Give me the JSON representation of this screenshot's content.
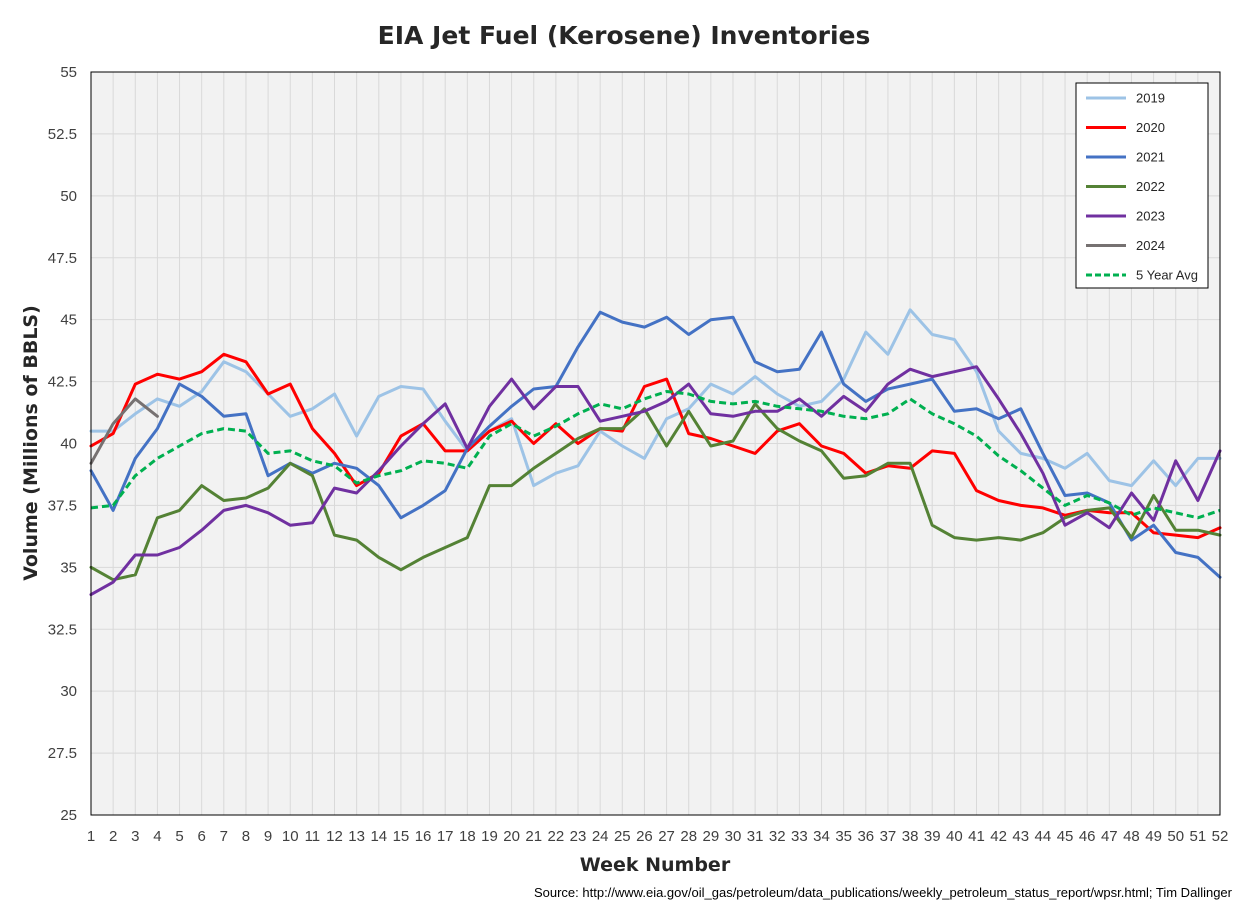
{
  "chart_data": {
    "type": "line",
    "title": "EIA Jet Fuel (Kerosene) Inventories",
    "xlabel": "Week Number",
    "ylabel": "Volume (Millions of BBLS)",
    "source": "Source: http://www.eia.gov/oil_gas/petroleum/data_publications/weekly_petroleum_status_report/wpsr.html; Tim Dallinger",
    "ylim": [
      25,
      55
    ],
    "xlim": [
      1,
      52
    ],
    "y_ticks": [
      "25",
      "27.5",
      "30",
      "32.5",
      "35",
      "37.5",
      "40",
      "42.5",
      "45",
      "47.5",
      "50",
      "52.5",
      "55"
    ],
    "x": [
      1,
      2,
      3,
      4,
      5,
      6,
      7,
      8,
      9,
      10,
      11,
      12,
      13,
      14,
      15,
      16,
      17,
      18,
      19,
      20,
      21,
      22,
      23,
      24,
      25,
      26,
      27,
      28,
      29,
      30,
      31,
      32,
      33,
      34,
      35,
      36,
      37,
      38,
      39,
      40,
      41,
      42,
      43,
      44,
      45,
      46,
      47,
      48,
      49,
      50,
      51,
      52
    ],
    "grid": true,
    "legend_position": "top-right",
    "series": [
      {
        "name": "2019",
        "color": "#9DC3E6",
        "dash": false,
        "values": [
          40.5,
          40.5,
          41.2,
          41.8,
          41.5,
          42.1,
          43.3,
          42.9,
          42.0,
          41.1,
          41.4,
          42.0,
          40.3,
          41.9,
          42.3,
          42.2,
          40.9,
          39.7,
          40.5,
          41.0,
          38.3,
          38.8,
          39.1,
          40.5,
          39.9,
          39.4,
          41.0,
          41.4,
          42.4,
          42.0,
          42.7,
          42.0,
          41.5,
          41.7,
          42.6,
          44.5,
          43.6,
          45.4,
          44.4,
          44.2,
          42.9,
          40.5,
          39.6,
          39.4,
          39.0,
          39.6,
          38.5,
          38.3,
          39.3,
          38.3,
          39.4,
          39.4
        ]
      },
      {
        "name": "2020",
        "color": "#FF0000",
        "dash": false,
        "values": [
          39.9,
          40.4,
          42.4,
          42.8,
          42.6,
          42.9,
          43.6,
          43.3,
          42.0,
          42.4,
          40.6,
          39.6,
          38.3,
          38.8,
          40.3,
          40.8,
          39.7,
          39.7,
          40.5,
          40.9,
          40.0,
          40.8,
          40.0,
          40.6,
          40.5,
          42.3,
          42.6,
          40.4,
          40.2,
          39.9,
          39.6,
          40.5,
          40.8,
          39.9,
          39.6,
          38.8,
          39.1,
          39.0,
          39.7,
          39.6,
          38.1,
          37.7,
          37.5,
          37.4,
          37.1,
          37.3,
          37.2,
          37.2,
          36.4,
          36.3,
          36.2,
          36.6
        ]
      },
      {
        "name": "2021",
        "color": "#4472C4",
        "dash": false,
        "values": [
          38.9,
          37.3,
          39.4,
          40.6,
          42.4,
          41.9,
          41.1,
          41.2,
          38.7,
          39.2,
          38.8,
          39.2,
          39.0,
          38.3,
          37.0,
          37.5,
          38.1,
          39.8,
          40.7,
          41.5,
          42.2,
          42.3,
          43.9,
          45.3,
          44.9,
          44.7,
          45.1,
          44.4,
          45.0,
          45.1,
          43.3,
          42.9,
          43.0,
          44.5,
          42.4,
          41.7,
          42.2,
          42.4,
          42.6,
          41.3,
          41.4,
          41.0,
          41.4,
          39.6,
          37.9,
          38.0,
          37.6,
          36.1,
          36.7,
          35.6,
          35.4,
          34.6
        ]
      },
      {
        "name": "2022",
        "color": "#548235",
        "dash": false,
        "values": [
          35.0,
          34.5,
          34.7,
          37.0,
          37.3,
          38.3,
          37.7,
          37.8,
          38.2,
          39.2,
          38.7,
          36.3,
          36.1,
          35.4,
          34.9,
          35.4,
          35.8,
          36.2,
          38.3,
          38.3,
          39.0,
          39.6,
          40.2,
          40.6,
          40.6,
          41.4,
          39.9,
          41.3,
          39.9,
          40.1,
          41.6,
          40.6,
          40.1,
          39.7,
          38.6,
          38.7,
          39.2,
          39.2,
          36.7,
          36.2,
          36.1,
          36.2,
          36.1,
          36.4,
          37.0,
          37.3,
          37.4,
          36.2,
          37.9,
          36.5,
          36.5,
          36.3
        ]
      },
      {
        "name": "2023",
        "color": "#7030A0",
        "dash": false,
        "values": [
          33.9,
          34.4,
          35.5,
          35.5,
          35.8,
          36.5,
          37.3,
          37.5,
          37.2,
          36.7,
          36.8,
          38.2,
          38.0,
          38.9,
          39.9,
          40.8,
          41.6,
          39.8,
          41.5,
          42.6,
          41.4,
          42.3,
          42.3,
          40.9,
          41.1,
          41.3,
          41.7,
          42.4,
          41.2,
          41.1,
          41.3,
          41.3,
          41.8,
          41.1,
          41.9,
          41.3,
          42.4,
          43.0,
          42.7,
          42.9,
          43.1,
          41.8,
          40.4,
          38.8,
          36.7,
          37.2,
          36.6,
          38.0,
          36.9,
          39.3,
          37.7,
          39.7
        ]
      },
      {
        "name": "2024",
        "color": "#767171",
        "dash": false,
        "values": [
          39.2,
          40.8,
          41.8,
          41.1,
          null,
          null,
          null,
          null,
          null,
          null,
          null,
          null,
          null,
          null,
          null,
          null,
          null,
          null,
          null,
          null,
          null,
          null,
          null,
          null,
          null,
          null,
          null,
          null,
          null,
          null,
          null,
          null,
          null,
          null,
          null,
          null,
          null,
          null,
          null,
          null,
          null,
          null,
          null,
          null,
          null,
          null,
          null,
          null,
          null,
          null,
          null,
          null
        ]
      },
      {
        "name": "5 Year Avg",
        "color": "#00B050",
        "dash": true,
        "values": [
          37.4,
          37.5,
          38.7,
          39.4,
          39.9,
          40.4,
          40.6,
          40.5,
          39.6,
          39.7,
          39.3,
          39.1,
          38.4,
          38.7,
          38.9,
          39.3,
          39.2,
          39.0,
          40.3,
          40.8,
          40.3,
          40.7,
          41.2,
          41.6,
          41.4,
          41.8,
          42.1,
          42.0,
          41.7,
          41.6,
          41.7,
          41.5,
          41.4,
          41.3,
          41.1,
          41.0,
          41.2,
          41.8,
          41.2,
          40.8,
          40.3,
          39.5,
          38.9,
          38.2,
          37.5,
          37.9,
          37.6,
          37.1,
          37.4,
          37.2,
          37.0,
          37.3
        ]
      }
    ]
  }
}
